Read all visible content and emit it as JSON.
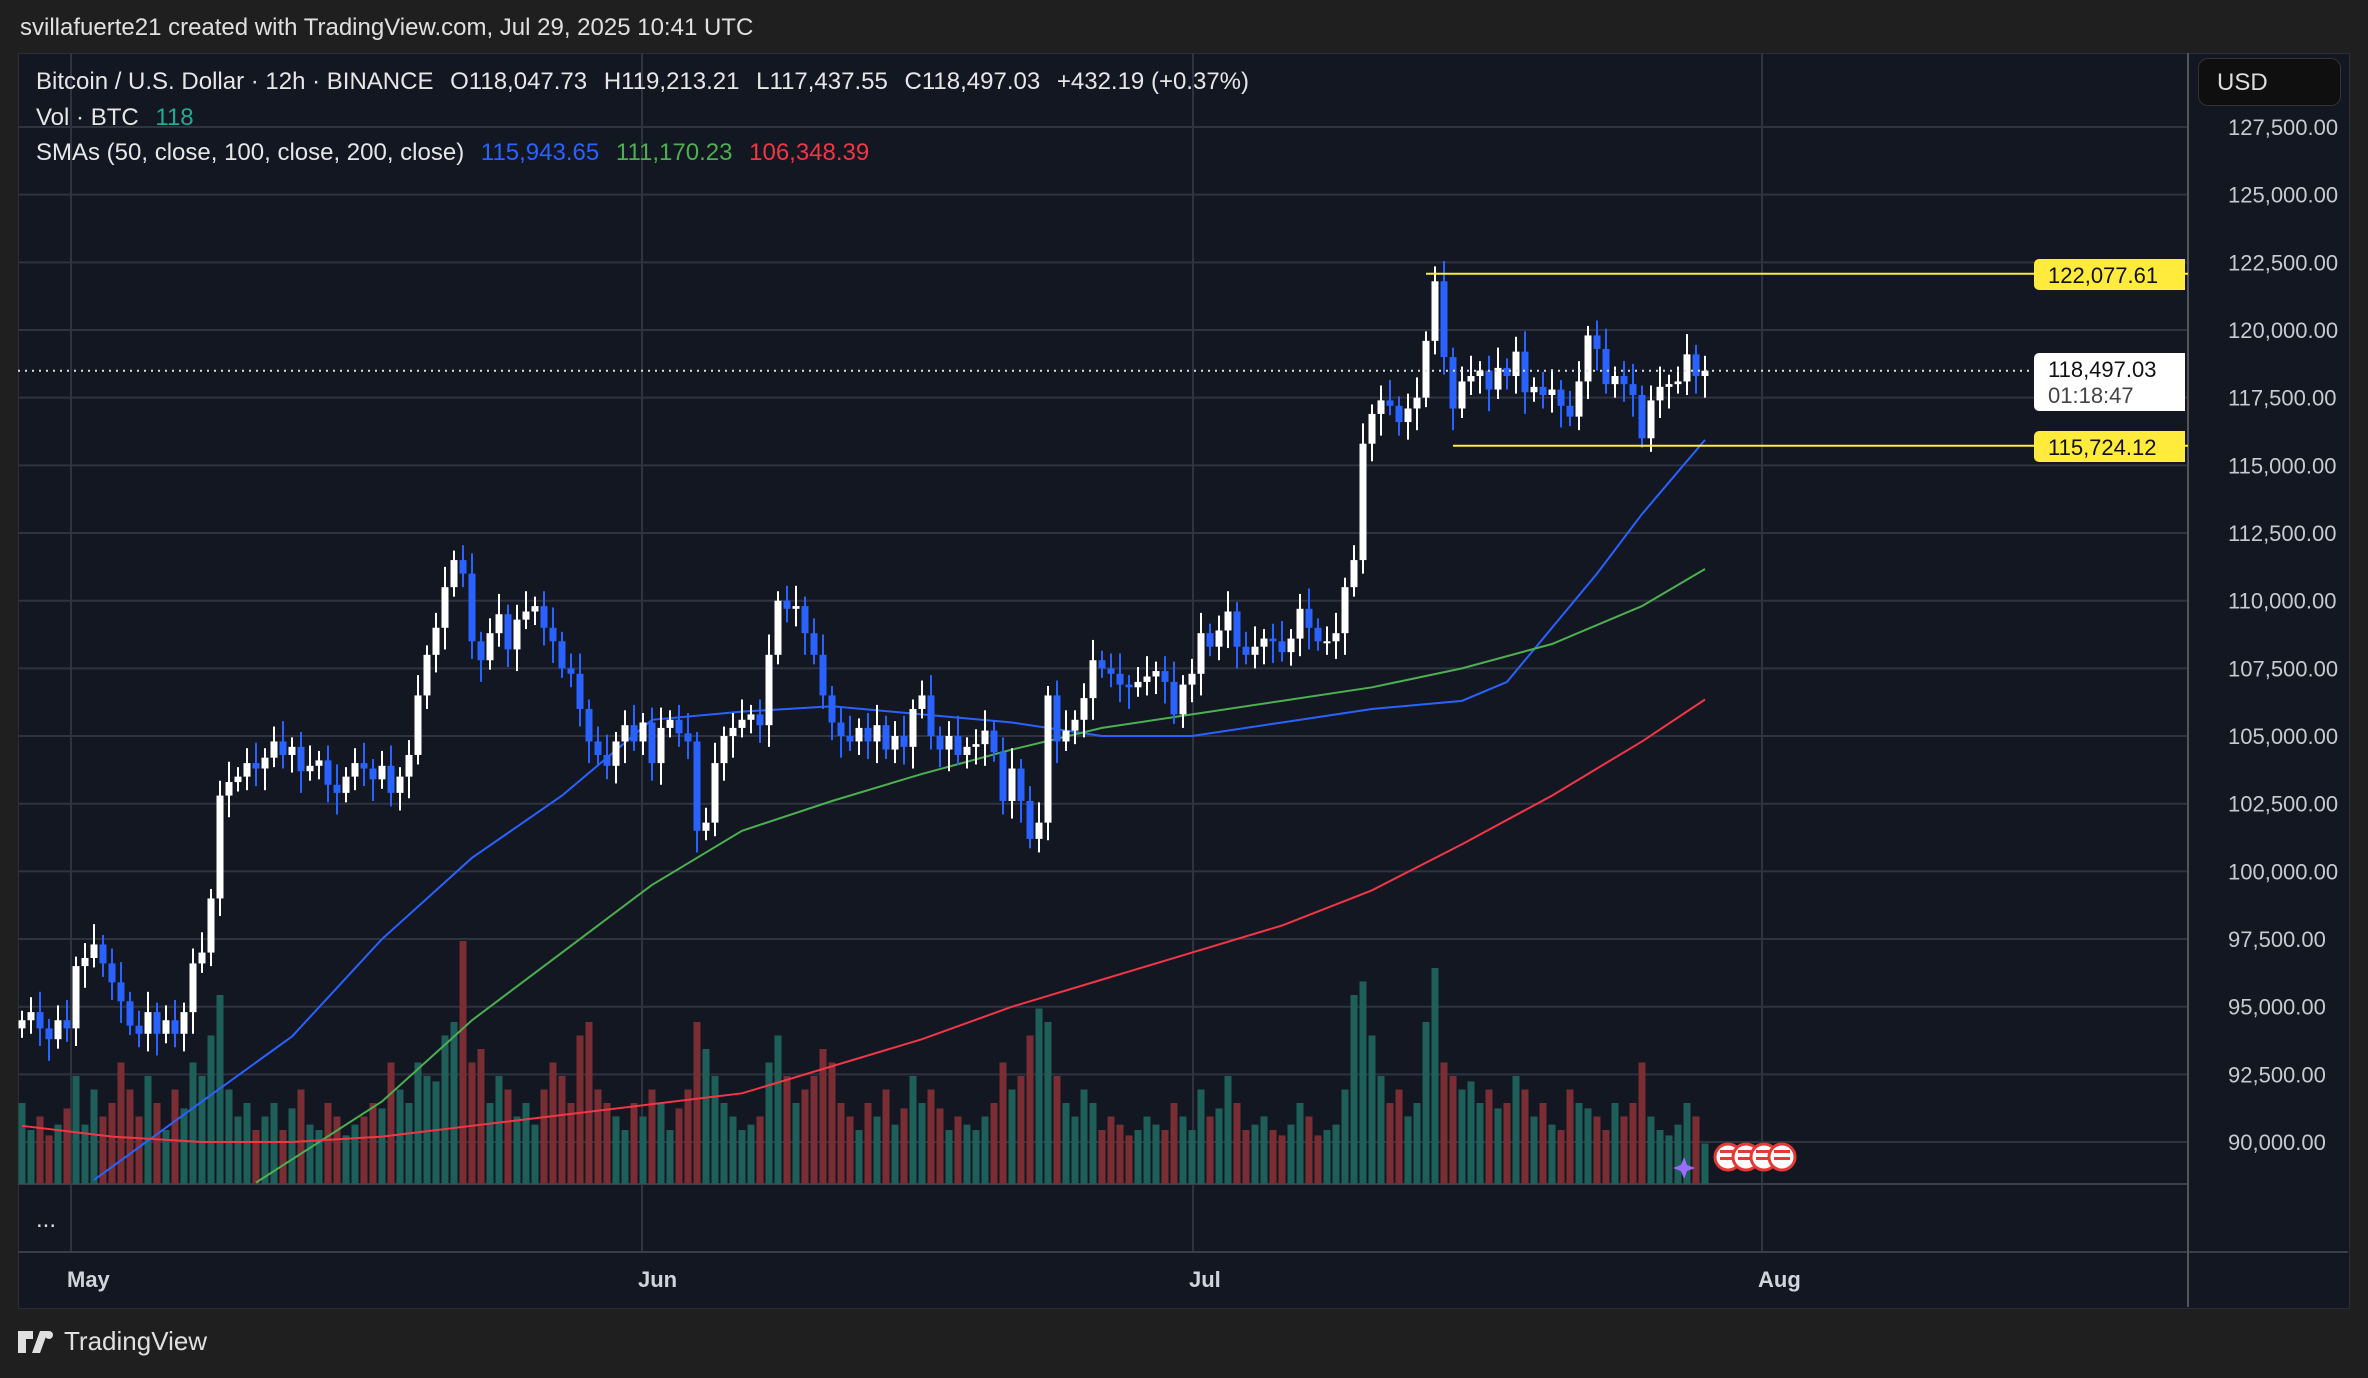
{
  "header": {
    "attribution": "svillafuerte21 created with TradingView.com, Jul 29, 2025 10:41 UTC"
  },
  "legend": {
    "symbol": "Bitcoin / U.S. Dollar · 12h · BINANCE",
    "open": "O118,047.73",
    "high": "H119,213.21",
    "low": "L117,437.55",
    "close": "C118,497.03",
    "change": "+432.19 (+0.37%)",
    "vol_label": "Vol · BTC",
    "vol_value": "118",
    "sma_label": "SMAs (50, close, 100, close, 200, close)",
    "sma50": "115,943.65",
    "sma100": "111,170.23",
    "sma200": "106,348.39"
  },
  "currency_button": "USD",
  "price_tags": {
    "resistance": "122,077.61",
    "current": "118,497.03",
    "countdown": "01:18:47",
    "support": "115,724.12"
  },
  "volume_pane_more": "...",
  "footer": {
    "brand": "TradingView"
  },
  "colors": {
    "up": "#ffffff",
    "down": "#2962ff",
    "vol_up": "#1f5f5a",
    "vol_down": "#7a2e33",
    "sma50": "#2962ff",
    "sma100": "#4caf50",
    "sma200": "#f23645",
    "levels": "#ffeb3b",
    "grid": "#2f3340"
  },
  "chart_data": {
    "type": "candlestick",
    "title": "Bitcoin / U.S. Dollar · 12h · BINANCE",
    "x_ticks": [
      "May",
      "Jun",
      "Jul",
      "Aug"
    ],
    "y_ticks": [
      "127,500.00",
      "125,000.00",
      "122,500.00",
      "120,000.00",
      "117,500.00",
      "115,000.00",
      "112,500.00",
      "110,000.00",
      "107,500.00",
      "105,000.00",
      "102,500.00",
      "100,000.00",
      "97,500.00",
      "95,000.00",
      "92,500.00",
      "90,000.00"
    ],
    "ylim": [
      88500,
      128500
    ],
    "closes_k": [
      94.5,
      94.8,
      94.2,
      93.8,
      94.5,
      94.2,
      96.5,
      96.8,
      97.3,
      96.6,
      95.9,
      95.2,
      94.3,
      94.0,
      94.8,
      94.0,
      94.5,
      94.0,
      94.8,
      96.6,
      97.0,
      99.0,
      102.8,
      103.3,
      103.5,
      104.0,
      103.8,
      104.2,
      104.8,
      104.3,
      104.6,
      103.7,
      103.9,
      104.1,
      103.2,
      102.9,
      103.5,
      104.0,
      103.8,
      103.4,
      103.9,
      102.9,
      103.5,
      104.3,
      106.5,
      108.0,
      109.0,
      110.5,
      111.5,
      111.0,
      108.5,
      107.8,
      108.8,
      109.5,
      108.2,
      109.3,
      109.6,
      109.8,
      109.0,
      108.5,
      107.5,
      107.3,
      106.0,
      104.8,
      104.3,
      103.9,
      104.8,
      105.4,
      104.8,
      105.5,
      104.0,
      105.3,
      105.6,
      105.1,
      104.8,
      101.5,
      101.8,
      104.0,
      105.0,
      105.3,
      105.6,
      105.8,
      105.4,
      108.0,
      110.0,
      109.7,
      109.8,
      108.8,
      108.0,
      106.5,
      105.5,
      105.0,
      104.8,
      105.3,
      104.8,
      105.4,
      104.5,
      105.0,
      104.6,
      106.0,
      106.5,
      105.0,
      104.5,
      105.0,
      104.3,
      104.6,
      104.7,
      105.2,
      104.4,
      102.6,
      103.8,
      102.6,
      101.2,
      101.8,
      106.5,
      104.8,
      105.2,
      105.6,
      106.4,
      107.8,
      107.5,
      107.3,
      106.9,
      106.8,
      107.0,
      107.2,
      107.4,
      107.0,
      105.8,
      106.9,
      107.3,
      108.8,
      108.3,
      108.9,
      109.6,
      108.3,
      108.0,
      108.3,
      108.6,
      108.5,
      108.1,
      108.6,
      109.7,
      109.0,
      108.5,
      108.5,
      108.8,
      110.5,
      111.5,
      115.8,
      116.9,
      117.4,
      117.2,
      116.6,
      117.1,
      117.5,
      119.6,
      121.8,
      119.0,
      117.1,
      118.1,
      118.3,
      118.5,
      117.8,
      118.6,
      118.3,
      119.2,
      117.7,
      117.9,
      117.6,
      117.8,
      117.2,
      116.8,
      118.1,
      119.8,
      119.3,
      118.0,
      118.3,
      118.0,
      117.6,
      116.0,
      117.4,
      117.9,
      118.0,
      118.1,
      119.1,
      118.3,
      118.497
    ],
    "volumes": [
      30,
      20,
      25,
      18,
      22,
      28,
      40,
      22,
      35,
      25,
      30,
      45,
      35,
      25,
      40,
      30,
      20,
      35,
      28,
      45,
      40,
      55,
      70,
      35,
      25,
      30,
      20,
      25,
      30,
      20,
      28,
      35,
      22,
      20,
      30,
      25,
      18,
      22,
      25,
      30,
      28,
      45,
      35,
      30,
      45,
      40,
      38,
      55,
      60,
      90,
      45,
      50,
      30,
      40,
      35,
      25,
      30,
      22,
      35,
      45,
      40,
      30,
      55,
      60,
      35,
      30,
      25,
      20,
      30,
      25,
      35,
      30,
      20,
      28,
      35,
      60,
      50,
      40,
      30,
      25,
      20,
      22,
      25,
      45,
      55,
      40,
      30,
      35,
      40,
      50,
      45,
      30,
      25,
      20,
      30,
      25,
      35,
      22,
      28,
      40,
      30,
      35,
      28,
      20,
      25,
      22,
      20,
      25,
      30,
      45,
      35,
      40,
      55,
      65,
      60,
      40,
      30,
      25,
      35,
      30,
      20,
      25,
      22,
      18,
      20,
      25,
      22,
      20,
      30,
      25,
      20,
      35,
      25,
      28,
      40,
      30,
      20,
      22,
      25,
      20,
      18,
      22,
      30,
      25,
      18,
      20,
      22,
      35,
      70,
      75,
      55,
      40,
      30,
      35,
      25,
      30,
      60,
      80,
      45,
      40,
      35,
      38,
      30,
      35,
      28,
      30,
      40,
      35,
      25,
      30,
      22,
      20,
      35,
      30,
      28,
      25,
      20,
      30,
      25,
      30,
      45,
      25,
      20,
      18,
      22,
      30,
      25,
      15
    ],
    "sma": [
      {
        "name": "SMA 50",
        "points": [
          [
            8,
            88.6
          ],
          [
            20,
            91.5
          ],
          [
            30,
            93.9
          ],
          [
            40,
            97.5
          ],
          [
            50,
            100.5
          ],
          [
            60,
            102.8
          ],
          [
            70,
            105.6
          ],
          [
            80,
            105.9
          ],
          [
            90,
            106.1
          ],
          [
            100,
            105.8
          ],
          [
            110,
            105.5
          ],
          [
            120,
            105.0
          ],
          [
            130,
            105.0
          ],
          [
            140,
            105.5
          ],
          [
            150,
            106.0
          ],
          [
            160,
            106.3
          ],
          [
            165,
            107.0
          ],
          [
            170,
            109.0
          ],
          [
            175,
            111.0
          ],
          [
            180,
            113.2
          ],
          [
            187,
            115.94
          ]
        ]
      },
      {
        "name": "SMA 100",
        "points": [
          [
            26,
            88.5
          ],
          [
            40,
            91.5
          ],
          [
            50,
            94.5
          ],
          [
            60,
            97.0
          ],
          [
            70,
            99.5
          ],
          [
            80,
            101.5
          ],
          [
            90,
            102.6
          ],
          [
            100,
            103.6
          ],
          [
            110,
            104.5
          ],
          [
            120,
            105.3
          ],
          [
            130,
            105.8
          ],
          [
            140,
            106.3
          ],
          [
            150,
            106.8
          ],
          [
            160,
            107.5
          ],
          [
            170,
            108.4
          ],
          [
            180,
            109.8
          ],
          [
            187,
            111.17
          ]
        ]
      },
      {
        "name": "SMA 200",
        "points": [
          [
            0,
            90.6
          ],
          [
            10,
            90.2
          ],
          [
            20,
            90.0
          ],
          [
            30,
            90.0
          ],
          [
            40,
            90.2
          ],
          [
            50,
            90.6
          ],
          [
            60,
            91.0
          ],
          [
            70,
            91.4
          ],
          [
            80,
            91.8
          ],
          [
            90,
            92.8
          ],
          [
            100,
            93.8
          ],
          [
            110,
            95.0
          ],
          [
            120,
            96.0
          ],
          [
            130,
            97.0
          ],
          [
            140,
            98.0
          ],
          [
            150,
            99.3
          ],
          [
            160,
            101.0
          ],
          [
            170,
            102.8
          ],
          [
            180,
            104.8
          ],
          [
            187,
            106.35
          ]
        ]
      }
    ],
    "levels": [
      {
        "name": "resistance",
        "value": 122077.61,
        "from_index": 156
      },
      {
        "name": "support",
        "value": 115724.12,
        "from_index": 159
      }
    ],
    "last_price": 118497.03
  }
}
